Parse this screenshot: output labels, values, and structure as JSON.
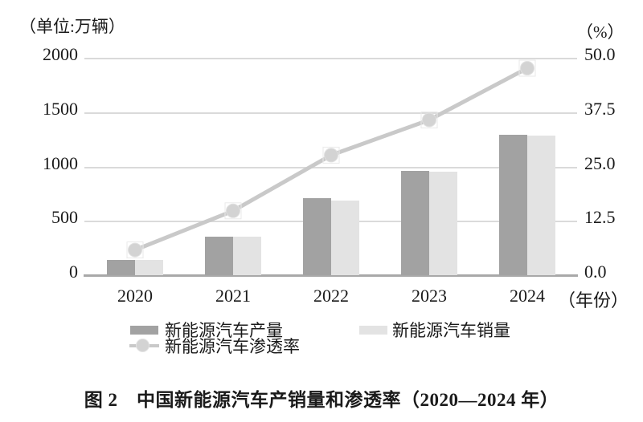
{
  "axes": {
    "left_unit": "（单位:万辆）",
    "right_unit": "（%）",
    "x_unit": "（年份）"
  },
  "legend": {
    "production": "新能源汽车产量",
    "sales": "新能源汽车销量",
    "penetration": "新能源汽车渗透率"
  },
  "caption": "图 2　中国新能源汽车产销量和渗透率（2020—2024 年）",
  "colors": {
    "production_bar": "#a2a2a2",
    "sales_bar": "#e3e3e3",
    "penetration_line": "#c9c9c9",
    "marker_fill": "#d3d3d3",
    "marker_edge": "#e0e0e0",
    "marker_box": "#eaeaea",
    "gridline": "#dadada",
    "axis_line": "#a8a8a8",
    "text": "#1a1a1a"
  },
  "chart_data": {
    "type": "bar",
    "subtype": "grouped-bars-with-line",
    "categories": [
      "2020",
      "2021",
      "2022",
      "2023",
      "2024"
    ],
    "series": [
      {
        "name": "新能源汽车产量",
        "type": "bar",
        "axis": "left",
        "values": [
          136.6,
          354.5,
          705.8,
          958.7,
          1288.8
        ]
      },
      {
        "name": "新能源汽车销量",
        "type": "bar",
        "axis": "left",
        "values": [
          136.7,
          352.1,
          688.7,
          949.5,
          1286.6
        ]
      },
      {
        "name": "新能源汽车渗透率",
        "type": "line",
        "axis": "right",
        "values": [
          5.8,
          14.8,
          27.6,
          35.7,
          47.6
        ]
      }
    ],
    "left_axis": {
      "unit": "（单位:万辆）",
      "min": 0,
      "max": 2000,
      "ticks": [
        "2000",
        "1500",
        "1000",
        "500",
        "0"
      ]
    },
    "right_axis": {
      "unit": "（%）",
      "min": 0,
      "max": 50,
      "ticks": [
        "50.0",
        "37.5",
        "25.0",
        "12.5",
        "0.0"
      ]
    },
    "x_axis": {
      "unit": "（年份）"
    },
    "grid": true,
    "legend_position": "bottom",
    "title": "图 2　中国新能源汽车产销量和渗透率（2020—2024 年）"
  }
}
